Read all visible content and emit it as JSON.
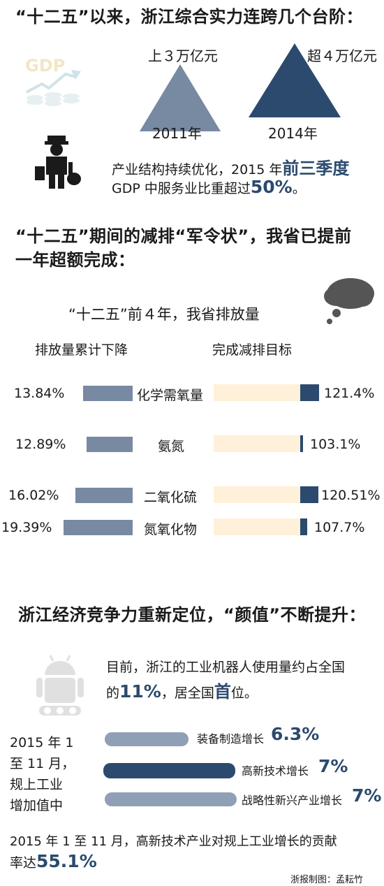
{
  "section1": {
    "title": "“十二五”以来，浙江综合实力连跨几个台阶：",
    "gdp_icon_text": "GDP",
    "items": [
      {
        "top_label": "上３万亿元",
        "year": "2011年"
      },
      {
        "top_label": "超４万亿元",
        "year": "2014年"
      }
    ],
    "service_line1_pre": "产业结构持续优化，2015 年",
    "service_line1_em": "前三季度",
    "service_line2_pre": "GDP 中服务业比重超过",
    "service_line2_em": "50%",
    "service_line2_post": "。",
    "colors": {
      "slate": "#7889a2",
      "navy": "#2b4a6e"
    }
  },
  "section2": {
    "title_line1": "“十二五”期间的减排“军令状”，我省已提前",
    "title_line2": "一年超额完成：",
    "subtitle": "“十二五”前４年，我省排放量",
    "col_left": "排放量累计下降",
    "col_right": "完成减排目标",
    "rows": [
      {
        "name": "化学需氧量",
        "decline": "13.84%",
        "target": "121.4%",
        "decline_value": 13.84,
        "target_value": 121.4
      },
      {
        "name": "氨氮",
        "decline": "12.89%",
        "target": "103.1%",
        "decline_value": 12.89,
        "target_value": 103.1
      },
      {
        "name": "二氧化硫",
        "decline": "16.02%",
        "target": "120.51%",
        "decline_value": 16.02,
        "target_value": 120.51
      },
      {
        "name": "氮氧化物",
        "decline": "19.39%",
        "target": "107.7%",
        "decline_value": 19.39,
        "target_value": 107.7
      }
    ]
  },
  "section3": {
    "title": "浙江经济竞争力重新定位，“颜值”不断提升：",
    "robot_line1": "目前，浙江的工业机器人使用量约占全国",
    "robot_line2_pre": "的",
    "robot_line2_em": "11%",
    "robot_line2_mid": "，居全国",
    "robot_line2_em2": "首",
    "robot_line2_post": "位。",
    "side_label": [
      "2015 年 1",
      "至 11 月，",
      "规上工业",
      "增加值中"
    ],
    "growth": [
      {
        "label": "装备制造增长",
        "value": "6.3%",
        "num": 6.3
      },
      {
        "label": "高新技术增长",
        "value": "7%",
        "num": 7
      },
      {
        "label": "战略性新兴产业增长",
        "value": "7%",
        "num": 7
      }
    ],
    "contrib_line1": "2015 年 1 至 11 月，高新技术产业对规上工业增长的贡献",
    "contrib_line2_pre": "率达",
    "contrib_line2_em": "55.1%"
  },
  "credit": "浙报制图：孟耘竹"
}
